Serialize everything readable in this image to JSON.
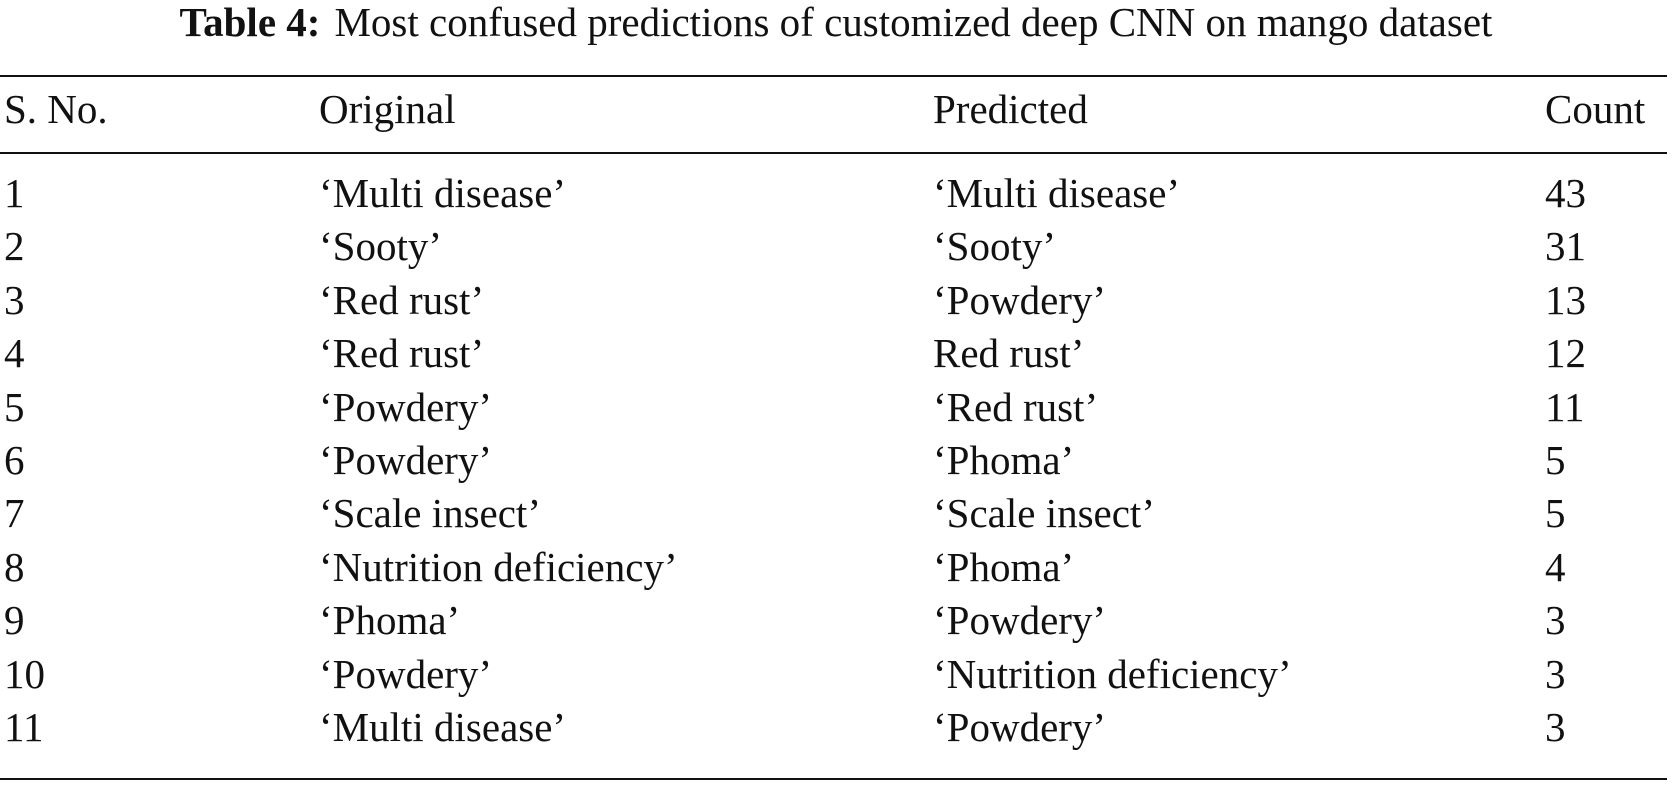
{
  "caption": {
    "label": "Table 4:",
    "text": "Most confused predictions of customized deep CNN on mango dataset"
  },
  "columns": [
    "S. No.",
    "Original",
    "Predicted",
    "Count"
  ],
  "rows": [
    {
      "sno": "1",
      "original": "‘Multi disease’",
      "predicted": "‘Multi disease’",
      "count": "43"
    },
    {
      "sno": "2",
      "original": "‘Sooty’",
      "predicted": "‘Sooty’",
      "count": "31"
    },
    {
      "sno": "3",
      "original": "‘Red rust’",
      "predicted": "‘Powdery’",
      "count": "13"
    },
    {
      "sno": "4",
      "original": "‘Red rust’",
      "predicted": "Red rust’",
      "count": "12"
    },
    {
      "sno": "5",
      "original": "‘Powdery’",
      "predicted": "‘Red rust’",
      "count": "11"
    },
    {
      "sno": "6",
      "original": "‘Powdery’",
      "predicted": "‘Phoma’",
      "count": "5"
    },
    {
      "sno": "7",
      "original": "‘Scale insect’",
      "predicted": "‘Scale insect’",
      "count": "5"
    },
    {
      "sno": "8",
      "original": "‘Nutrition deficiency’",
      "predicted": "‘Phoma’",
      "count": "4"
    },
    {
      "sno": "9",
      "original": "‘Phoma’",
      "predicted": "‘Powdery’",
      "count": "3"
    },
    {
      "sno": "10",
      "original": "‘Powdery’",
      "predicted": "‘Nutrition deficiency’",
      "count": "3"
    },
    {
      "sno": "11",
      "original": "‘Multi disease’",
      "predicted": "‘Powdery’",
      "count": "3"
    }
  ]
}
